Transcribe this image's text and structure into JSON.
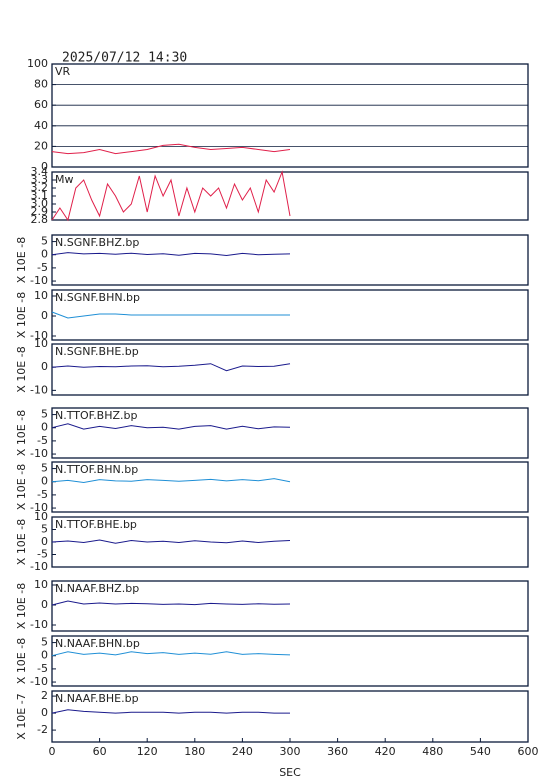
{
  "timestamp": "2025/07/12 14:30",
  "chart_data": [
    {
      "type": "line",
      "title": "VR",
      "color": "#e0204a",
      "grid": true,
      "xlim": [
        0,
        600
      ],
      "ylim": [
        0,
        100
      ],
      "yticks": [
        0,
        20,
        40,
        60,
        80,
        100
      ],
      "x": [
        0,
        20,
        40,
        60,
        80,
        100,
        120,
        140,
        160,
        180,
        200,
        220,
        240,
        260,
        280,
        300
      ],
      "values": [
        15,
        13,
        14,
        17,
        13,
        15,
        17,
        21,
        22,
        19,
        17,
        18,
        19,
        17,
        15,
        17
      ]
    },
    {
      "type": "line",
      "title": "Mw",
      "color": "#e0204a",
      "xlim": [
        0,
        600
      ],
      "ylim": [
        2.8,
        3.4
      ],
      "yticks": [
        2.8,
        2.9,
        {
          "value": 3,
          "label": "3.0"
        },
        3.1,
        3.2,
        3.3,
        3.4
      ],
      "x": [
        0,
        10,
        20,
        30,
        40,
        50,
        60,
        70,
        80,
        90,
        100,
        110,
        120,
        130,
        140,
        150,
        160,
        170,
        180,
        190,
        200,
        210,
        220,
        230,
        240,
        250,
        260,
        270,
        280,
        290,
        300
      ],
      "values": [
        2.8,
        2.95,
        2.8,
        3.2,
        3.3,
        3.05,
        2.85,
        3.25,
        3.1,
        2.9,
        3.0,
        3.35,
        2.9,
        3.35,
        3.1,
        3.3,
        2.85,
        3.2,
        2.9,
        3.2,
        3.1,
        3.2,
        2.95,
        3.25,
        3.05,
        3.2,
        2.9,
        3.3,
        3.15,
        3.4,
        2.85
      ]
    },
    {
      "type": "line",
      "title": "N.SGNF.BHZ.bp",
      "ylabel": "X 10E -8",
      "color": "#1a1a8c",
      "xlim": [
        0,
        600
      ],
      "ylim": [
        -11.5,
        7.5
      ],
      "yticks": [
        5,
        0,
        -5,
        -10
      ],
      "x": [
        0,
        20,
        40,
        60,
        80,
        100,
        120,
        140,
        160,
        180,
        200,
        220,
        240,
        260,
        280,
        300
      ],
      "values": [
        0,
        0.8,
        0.3,
        0.5,
        0.2,
        0.6,
        0.1,
        0.4,
        -0.2,
        0.5,
        0.3,
        -0.3,
        0.5,
        0,
        0.2,
        0.3
      ]
    },
    {
      "type": "line",
      "title": "N.SGNF.BHN.bp",
      "ylabel": "X 10E -8",
      "color": "#1f8fd6",
      "xlim": [
        0,
        600
      ],
      "ylim": [
        -12,
        13
      ],
      "yticks": [
        10,
        0,
        -10
      ],
      "x": [
        0,
        20,
        40,
        60,
        80,
        100,
        120,
        140,
        160,
        180,
        200,
        220,
        240,
        260,
        280,
        300
      ],
      "values": [
        2,
        -1,
        0,
        1,
        1,
        0.5,
        0.5,
        0.5,
        0.5,
        0.5,
        0.5,
        0.5,
        0.5,
        0.5,
        0.5,
        0.5
      ]
    },
    {
      "type": "line",
      "title": "N.SGNF.BHE.bp",
      "ylabel": "X 10E -8",
      "color": "#1a1a8c",
      "xlim": [
        0,
        600
      ],
      "ylim": [
        -12,
        10
      ],
      "yticks": [
        10,
        0,
        -10
      ],
      "x": [
        0,
        20,
        40,
        60,
        80,
        100,
        120,
        140,
        160,
        180,
        200,
        220,
        240,
        260,
        280,
        300
      ],
      "values": [
        0,
        0.5,
        0,
        0.3,
        0.2,
        0.5,
        0.6,
        0.2,
        0.4,
        0.8,
        1.5,
        -1.5,
        0.5,
        0.3,
        0.4,
        1.5
      ]
    },
    {
      "type": "line",
      "title": "N.TTOF.BHZ.bp",
      "ylabel": "X 10E -8",
      "color": "#1a1a8c",
      "xlim": [
        0,
        600
      ],
      "ylim": [
        -11.5,
        7.5
      ],
      "yticks": [
        5,
        0,
        -5,
        -10
      ],
      "x": [
        0,
        20,
        40,
        60,
        80,
        100,
        120,
        140,
        160,
        180,
        200,
        220,
        240,
        260,
        280,
        300
      ],
      "values": [
        0,
        1.5,
        -0.5,
        0.5,
        -0.3,
        0.8,
        0,
        0.2,
        -0.5,
        0.5,
        0.8,
        -0.5,
        0.6,
        -0.4,
        0.3,
        0.2
      ]
    },
    {
      "type": "line",
      "title": "N.TTOF.BHN.bp",
      "ylabel": "X 10E -8",
      "color": "#1f8fd6",
      "xlim": [
        0,
        600
      ],
      "ylim": [
        -11.5,
        7.5
      ],
      "yticks": [
        5,
        0,
        -5,
        -10
      ],
      "x": [
        0,
        20,
        40,
        60,
        80,
        100,
        120,
        140,
        160,
        180,
        200,
        220,
        240,
        260,
        280,
        300
      ],
      "values": [
        0,
        0.5,
        -0.3,
        0.8,
        0.3,
        0.2,
        0.8,
        0.5,
        0.2,
        0.5,
        0.9,
        0.3,
        0.8,
        0.4,
        1.2,
        0
      ]
    },
    {
      "type": "line",
      "title": "N.TTOF.BHE.bp",
      "ylabel": "X 10E -8",
      "color": "#1a1a8c",
      "xlim": [
        0,
        600
      ],
      "ylim": [
        -10,
        10
      ],
      "yticks": [
        10,
        5,
        0,
        -5,
        -10
      ],
      "x": [
        0,
        20,
        40,
        60,
        80,
        100,
        120,
        140,
        160,
        180,
        200,
        220,
        240,
        260,
        280,
        300
      ],
      "values": [
        0,
        0.4,
        -0.2,
        0.8,
        -0.5,
        0.6,
        0,
        0.3,
        -0.2,
        0.5,
        0,
        -0.3,
        0.4,
        -0.2,
        0.3,
        0.6
      ]
    },
    {
      "type": "line",
      "title": "N.NAAF.BHZ.bp",
      "ylabel": "X 10E -8",
      "color": "#1a1a8c",
      "xlim": [
        0,
        600
      ],
      "ylim": [
        -13,
        12
      ],
      "yticks": [
        10,
        0,
        -10
      ],
      "x": [
        0,
        20,
        40,
        60,
        80,
        100,
        120,
        140,
        160,
        180,
        200,
        220,
        240,
        260,
        280,
        300
      ],
      "values": [
        0,
        2,
        0.5,
        1,
        0.5,
        0.8,
        0.6,
        0.3,
        0.5,
        0.2,
        0.8,
        0.5,
        0.3,
        0.6,
        0.4,
        0.5
      ]
    },
    {
      "type": "line",
      "title": "N.NAAF.BHN.bp",
      "ylabel": "X 10E -8",
      "color": "#1f8fd6",
      "xlim": [
        0,
        600
      ],
      "ylim": [
        -11.5,
        7.5
      ],
      "yticks": [
        5,
        0,
        -5,
        -10
      ],
      "x": [
        0,
        20,
        40,
        60,
        80,
        100,
        120,
        140,
        160,
        180,
        200,
        220,
        240,
        260,
        280,
        300
      ],
      "values": [
        0,
        1.5,
        0.5,
        1,
        0.3,
        1.5,
        0.8,
        1.2,
        0.5,
        1,
        0.6,
        1.5,
        0.5,
        0.8,
        0.5,
        0.3
      ]
    },
    {
      "type": "line",
      "title": "N.NAAF.BHE.bp",
      "ylabel": "X 10E -7",
      "color": "#1a1a8c",
      "xlim": [
        0,
        600
      ],
      "ylim": [
        -3.4,
        2.6
      ],
      "yticks": [
        2,
        0,
        -2
      ],
      "x": [
        0,
        20,
        40,
        60,
        80,
        100,
        120,
        140,
        160,
        180,
        200,
        220,
        240,
        260,
        280,
        300
      ],
      "values": [
        0,
        0.4,
        0.2,
        0.1,
        0,
        0.1,
        0.1,
        0.1,
        0,
        0.1,
        0.1,
        0,
        0.1,
        0.1,
        0,
        0
      ],
      "xticks": [
        0,
        60,
        120,
        180,
        240,
        300,
        360,
        420,
        480,
        540,
        600
      ],
      "xlabel": "SEC"
    }
  ]
}
